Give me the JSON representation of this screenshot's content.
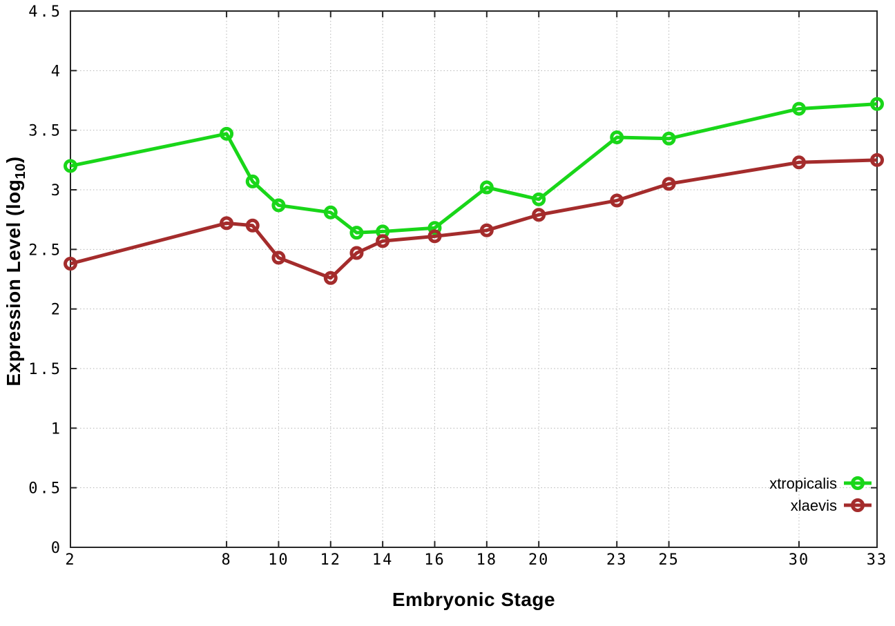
{
  "figure": {
    "background": "#ffffff",
    "border_color": "#262626",
    "grid_color": "#b3b3b3",
    "text_color": "#000000"
  },
  "chart_data": {
    "type": "line",
    "title": "",
    "xlabel": "Embryonic Stage",
    "ylabel": "Expression Level (log10)",
    "ylabel_parts": {
      "pre": "Expression Level (log",
      "sub": "10",
      "post": ")"
    },
    "xlim": [
      2,
      33
    ],
    "ylim": [
      0,
      4.5
    ],
    "grid": true,
    "legend_position": "inside-bottom-right",
    "x_ticks": [
      2,
      8,
      10,
      12,
      14,
      16,
      18,
      20,
      23,
      25,
      30,
      33
    ],
    "x_tick_labels": [
      "2",
      "8",
      "10",
      "12",
      "14",
      "16",
      "18",
      "20",
      "23",
      "25",
      "30",
      "33"
    ],
    "y_ticks": [
      0,
      0.5,
      1,
      1.5,
      2,
      2.5,
      3,
      3.5,
      4,
      4.5
    ],
    "y_tick_labels": [
      "0",
      "0.5",
      "1",
      "1.5",
      "2",
      "2.5",
      "3",
      "3.5",
      "4",
      "4.5"
    ],
    "x": [
      2,
      8,
      9,
      10,
      12,
      13,
      14,
      16,
      18,
      20,
      23,
      25,
      30,
      33
    ],
    "series": [
      {
        "name": "xtropicalis",
        "color": "#19d619",
        "values": [
          3.2,
          3.47,
          3.07,
          2.87,
          2.81,
          2.64,
          2.65,
          2.68,
          3.02,
          2.92,
          3.44,
          3.43,
          3.68,
          3.72
        ]
      },
      {
        "name": "xlaevis",
        "color": "#a42c2c",
        "values": [
          2.38,
          2.72,
          2.7,
          2.43,
          2.26,
          2.47,
          2.57,
          2.61,
          2.66,
          2.79,
          2.91,
          3.05,
          3.23,
          3.25
        ]
      }
    ]
  }
}
